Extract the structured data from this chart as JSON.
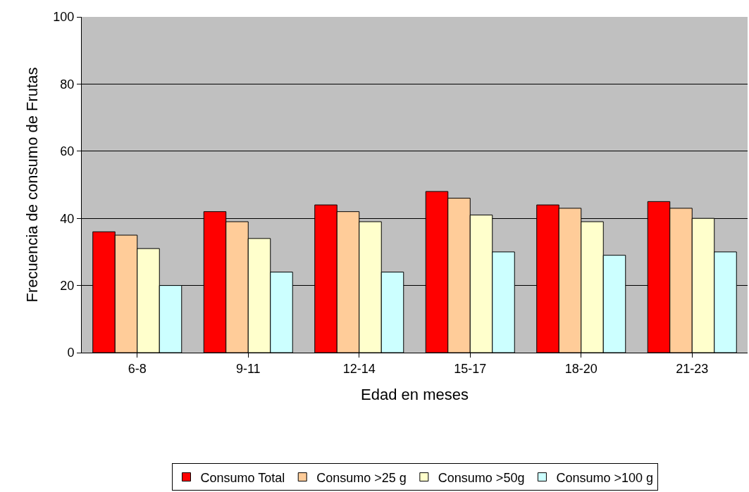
{
  "chart_data": {
    "type": "bar",
    "xlabel": "Edad en meses",
    "ylabel": "Frecuencia de consumo de Frutas",
    "categories": [
      "6-8",
      "9-11",
      "12-14",
      "15-17",
      "18-20",
      "21-23"
    ],
    "series": [
      {
        "name": "Consumo Total",
        "color": "#ff0000",
        "values": [
          36,
          42,
          44,
          48,
          44,
          45
        ]
      },
      {
        "name": "Consumo >25 g",
        "color": "#ffcc99",
        "values": [
          35,
          39,
          42,
          46,
          43,
          43
        ]
      },
      {
        "name": "Consumo >50g",
        "color": "#ffffcc",
        "values": [
          31,
          34,
          39,
          41,
          39,
          40
        ]
      },
      {
        "name": "Consumo >100 g",
        "color": "#ccffff",
        "values": [
          20,
          24,
          24,
          30,
          29,
          30
        ]
      }
    ],
    "ylim": [
      0,
      100
    ],
    "yticks": [
      0,
      20,
      40,
      60,
      80,
      100
    ],
    "grid": "y",
    "legend": "bottom"
  }
}
